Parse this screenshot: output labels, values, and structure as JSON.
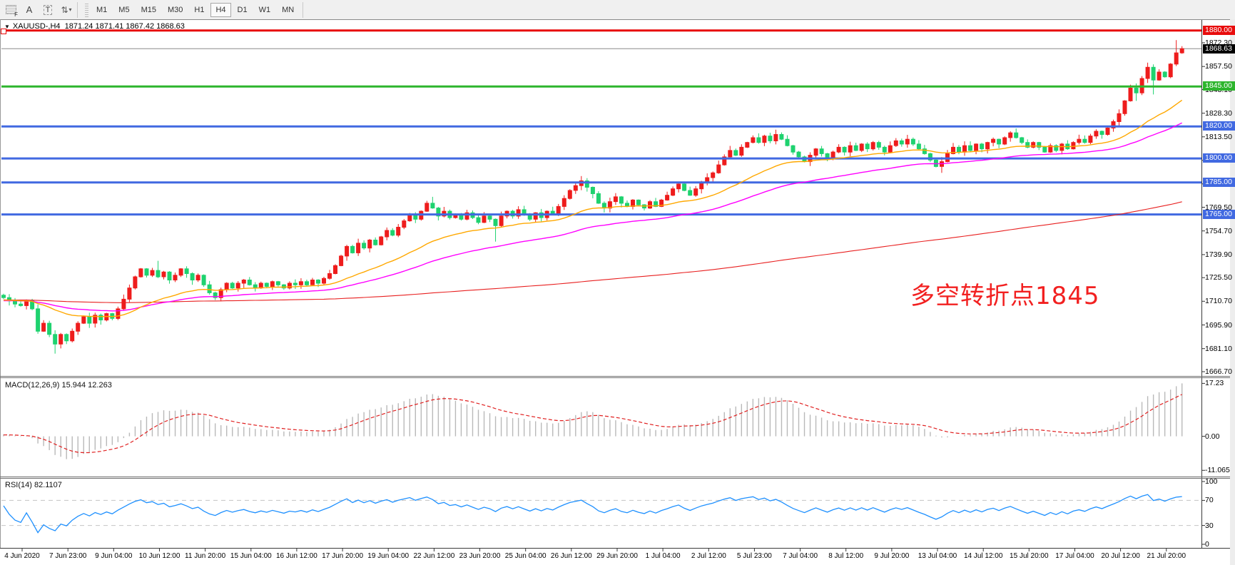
{
  "toolbar": {
    "icons": [
      {
        "name": "grid-f-icon",
        "glyph": "F"
      },
      {
        "name": "annotate-a-icon",
        "glyph": "A"
      },
      {
        "name": "text-tool-icon",
        "glyph": "T"
      },
      {
        "name": "indicator-arrows-icon",
        "glyph": "⇅",
        "caret": "▾"
      }
    ],
    "timeframes": [
      "M1",
      "M5",
      "M15",
      "M30",
      "H1",
      "H4",
      "D1",
      "W1",
      "MN"
    ],
    "active_timeframe": "H4"
  },
  "chart": {
    "title_dropdown_icon": "▼",
    "symbol_line": "XAUUSD-,H4  1871.24 1871.41 1867.42 1868.63"
  },
  "chart_data": {
    "type": "candlestick",
    "symbol": "XAUUSD-",
    "timeframe": "H4",
    "ohlc": {
      "open": 1871.24,
      "high": 1871.41,
      "low": 1867.42,
      "close": 1868.63
    },
    "current_price": 1868.63,
    "current_price_label": "1868.63",
    "price_ticks": [
      "1872.30",
      "1857.50",
      "1843.10",
      "1828.30",
      "1813.50",
      "1798.80",
      "1784.10",
      "1769.50",
      "1754.70",
      "1739.90",
      "1725.50",
      "1710.70",
      "1695.90",
      "1681.10",
      "1666.70"
    ],
    "levels": [
      {
        "price": 1880,
        "label": "1880.00",
        "color": "#e80c0c",
        "type": "resistance"
      },
      {
        "price": 1845,
        "label": "1845.00",
        "color": "#2db52d",
        "type": "pivot"
      },
      {
        "price": 1820,
        "label": "1820.00",
        "color": "#4169e1",
        "type": "support"
      },
      {
        "price": 1800,
        "label": "1800.00",
        "color": "#4169e1",
        "type": "support"
      },
      {
        "price": 1785,
        "label": "1785.00",
        "color": "#4169e1",
        "type": "support"
      },
      {
        "price": 1765,
        "label": "1765.00",
        "color": "#4169e1",
        "type": "support"
      }
    ],
    "x_labels": [
      "4 Jun 2020",
      "7 Jun 23:00",
      "9 Jun 04:00",
      "10 Jun 12:00",
      "11 Jun 20:00",
      "15 Jun 04:00",
      "16 Jun 12:00",
      "17 Jun 20:00",
      "19 Jun 04:00",
      "22 Jun 12:00",
      "23 Jun 20:00",
      "25 Jun 04:00",
      "26 Jun 12:00",
      "29 Jun 20:00",
      "1 Jul 04:00",
      "2 Jul 12:00",
      "5 Jul 23:00",
      "7 Jul 04:00",
      "8 Jul 12:00",
      "9 Jul 20:00",
      "13 Jul 04:00",
      "14 Jul 12:00",
      "15 Jul 20:00",
      "17 Jul 04:00",
      "20 Jul 12:00",
      "21 Jul 20:00"
    ],
    "closes": [
      1713,
      1711,
      1709,
      1708,
      1711,
      1706,
      1692,
      1697,
      1690,
      1684,
      1690,
      1686,
      1692,
      1697,
      1701,
      1697,
      1702,
      1699,
      1703,
      1700,
      1706,
      1712,
      1719,
      1726,
      1731,
      1727,
      1730,
      1726,
      1729,
      1724,
      1727,
      1731,
      1728,
      1724,
      1727,
      1721,
      1716,
      1713,
      1718,
      1722,
      1719,
      1722,
      1724,
      1721,
      1719,
      1722,
      1720,
      1723,
      1721,
      1719,
      1722,
      1721,
      1723,
      1721,
      1724,
      1722,
      1725,
      1728,
      1733,
      1739,
      1745,
      1741,
      1747,
      1744,
      1749,
      1746,
      1751,
      1755,
      1752,
      1757,
      1761,
      1765,
      1762,
      1767,
      1772,
      1769,
      1764,
      1767,
      1763,
      1765,
      1762,
      1766,
      1763,
      1760,
      1764,
      1762,
      1758,
      1764,
      1767,
      1764,
      1768,
      1765,
      1762,
      1766,
      1763,
      1767,
      1765,
      1770,
      1775,
      1780,
      1783,
      1786,
      1782,
      1778,
      1772,
      1769,
      1773,
      1776,
      1772,
      1770,
      1774,
      1771,
      1769,
      1773,
      1770,
      1774,
      1777,
      1781,
      1784,
      1780,
      1777,
      1781,
      1785,
      1788,
      1791,
      1796,
      1801,
      1805,
      1802,
      1807,
      1810,
      1813,
      1810,
      1814,
      1811,
      1815,
      1812,
      1808,
      1804,
      1801,
      1798,
      1802,
      1806,
      1803,
      1800,
      1804,
      1807,
      1804,
      1808,
      1805,
      1809,
      1806,
      1810,
      1807,
      1804,
      1808,
      1811,
      1809,
      1812,
      1809,
      1806,
      1803,
      1799,
      1795,
      1798,
      1803,
      1807,
      1804,
      1808,
      1805,
      1809,
      1806,
      1810,
      1812,
      1809,
      1813,
      1816,
      1813,
      1810,
      1807,
      1810,
      1807,
      1804,
      1808,
      1805,
      1809,
      1806,
      1810,
      1812,
      1810,
      1814,
      1817,
      1815,
      1819,
      1823,
      1828,
      1836,
      1844,
      1841,
      1850,
      1857,
      1849,
      1854,
      1851,
      1859,
      1866,
      1868.63
    ],
    "wick_overrides": {
      "9": {
        "low": 1678
      },
      "27": {
        "high": 1736
      },
      "75": {
        "high": 1776
      },
      "86": {
        "low": 1748
      },
      "101": {
        "high": 1789
      },
      "164": {
        "low": 1791
      },
      "198": {
        "low": 1836
      },
      "201": {
        "low": 1840
      },
      "205": {
        "high": 1874
      }
    },
    "moving_averages": [
      {
        "name": "fast-ma",
        "color": "#ffa800",
        "period": 26,
        "kind": "ema"
      },
      {
        "name": "medium-ma",
        "color": "#ff00ff",
        "period": 55,
        "kind": "ema"
      },
      {
        "name": "slow-ma",
        "color": "#e82020",
        "period": 200,
        "kind": "sma"
      }
    ],
    "colors": {
      "up": "#ee1c1c",
      "down": "#1ed26f",
      "current_line": "#8c8c8c"
    },
    "macd": {
      "label": "MACD(12,26,9)",
      "values": "15.944 12.263",
      "axis": [
        "17.23",
        "0.00",
        "-11.065"
      ],
      "axis_values": [
        17.23,
        0,
        -11.065
      ],
      "histogram_color": "#b9b9b9",
      "signal_color": "#e02020"
    },
    "rsi": {
      "label": "RSI(14)",
      "value": "82.1107",
      "axis": [
        "100",
        "70",
        "30",
        "0"
      ],
      "axis_values": [
        100,
        70,
        30,
        0
      ],
      "line_color": "#1e90ff",
      "bands": [
        70,
        30
      ]
    },
    "annotation": {
      "text": "多空转折点1845",
      "color": "#f22020"
    }
  }
}
